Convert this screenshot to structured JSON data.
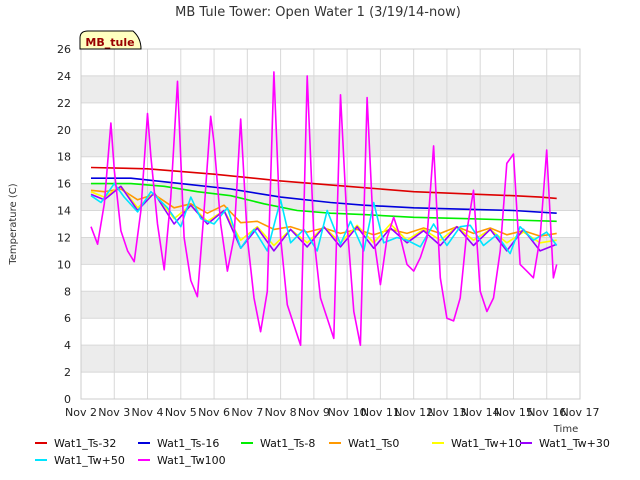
{
  "chart_data": {
    "type": "line",
    "title": "MB Tule Tower: Open Water 1 (3/19/14-now)",
    "ylabel": "Temperature (C)",
    "xlabel": "Time",
    "ylim": [
      0,
      26
    ],
    "yticks": [
      0,
      2,
      4,
      6,
      8,
      10,
      12,
      14,
      16,
      18,
      20,
      22,
      24,
      26
    ],
    "xlim": [
      0,
      15
    ],
    "xticks": [
      {
        "v": 0,
        "label": "Nov 2"
      },
      {
        "v": 1,
        "label": "Nov 3"
      },
      {
        "v": 2,
        "label": "Nov 4"
      },
      {
        "v": 3,
        "label": "Nov 5"
      },
      {
        "v": 4,
        "label": "Nov 6"
      },
      {
        "v": 5,
        "label": "Nov 7"
      },
      {
        "v": 6,
        "label": "Nov 8"
      },
      {
        "v": 7,
        "label": "Nov 9"
      },
      {
        "v": 8,
        "label": "Nov 10"
      },
      {
        "v": 9,
        "label": "Nov 11"
      },
      {
        "v": 10,
        "label": "Nov 12"
      },
      {
        "v": 11,
        "label": "Nov 13"
      },
      {
        "v": 12,
        "label": "Nov 14"
      },
      {
        "v": 13,
        "label": "Nov 15"
      },
      {
        "v": 14,
        "label": "Nov 16"
      },
      {
        "v": 15,
        "label": "Nov 17"
      }
    ],
    "site_label": "MB_tule",
    "series": [
      {
        "name": "Wat1_Ts-32",
        "color": "#dd0000",
        "x": [
          0.3,
          2,
          4,
          6,
          8,
          10,
          12,
          13,
          13.8,
          14.3
        ],
        "y": [
          17.2,
          17.1,
          16.7,
          16.2,
          15.8,
          15.4,
          15.2,
          15.1,
          15.0,
          14.9
        ]
      },
      {
        "name": "Wat1_Ts-16",
        "color": "#0000dd",
        "x": [
          0.3,
          1.5,
          3,
          4.5,
          6,
          7.5,
          8.5,
          10,
          11.5,
          13,
          14.3
        ],
        "y": [
          16.4,
          16.4,
          16.0,
          15.6,
          15.0,
          14.6,
          14.4,
          14.2,
          14.1,
          14.0,
          13.8
        ]
      },
      {
        "name": "Wat1_Ts-8",
        "color": "#00ee00",
        "x": [
          0.3,
          1.5,
          2.5,
          3.5,
          4.5,
          5.5,
          6.5,
          7.5,
          8.5,
          10,
          11.5,
          13,
          14.3
        ],
        "y": [
          16.0,
          16.0,
          15.8,
          15.4,
          15.1,
          14.5,
          14.0,
          13.8,
          13.7,
          13.5,
          13.4,
          13.3,
          13.2
        ]
      },
      {
        "name": "Wat1_Ts0",
        "color": "#ff9900",
        "x": [
          0.3,
          0.7,
          1.2,
          1.7,
          2.2,
          2.8,
          3.3,
          3.8,
          4.3,
          4.8,
          5.3,
          5.8,
          6.3,
          6.8,
          7.3,
          7.8,
          8.3,
          8.8,
          9.3,
          9.8,
          10.3,
          10.8,
          11.3,
          11.8,
          12.3,
          12.8,
          13.3,
          13.8,
          14.3
        ],
        "y": [
          15.5,
          15.4,
          15.6,
          14.8,
          15.2,
          14.2,
          14.5,
          13.8,
          14.4,
          13.1,
          13.2,
          12.6,
          12.8,
          12.4,
          12.7,
          12.3,
          12.6,
          12.2,
          12.6,
          12.3,
          12.7,
          12.3,
          12.8,
          12.3,
          12.7,
          12.2,
          12.5,
          12.1,
          12.3
        ]
      },
      {
        "name": "Wat1_Tw+10",
        "color": "#ffff00",
        "x": [
          0.3,
          0.7,
          1.2,
          1.7,
          2.2,
          2.8,
          3.3,
          3.8,
          4.3,
          4.8,
          5.3,
          5.8,
          6.3,
          6.8,
          7.3,
          7.8,
          8.3,
          8.8,
          9.3,
          9.8,
          10.3,
          10.8,
          11.3,
          11.8,
          12.3,
          12.8,
          13.3,
          13.8,
          14.3
        ],
        "y": [
          15.4,
          15.0,
          15.8,
          14.2,
          15.3,
          13.4,
          14.4,
          13.2,
          14.0,
          11.8,
          12.8,
          11.4,
          12.6,
          11.6,
          12.8,
          11.6,
          12.9,
          11.6,
          13.0,
          11.8,
          12.6,
          11.8,
          12.8,
          11.8,
          12.6,
          11.6,
          12.4,
          11.6,
          11.8
        ]
      },
      {
        "name": "Wat1_Tw+30",
        "color": "#9900ff",
        "x": [
          0.3,
          0.7,
          1.2,
          1.7,
          2.2,
          2.8,
          3.3,
          3.8,
          4.3,
          4.8,
          5.3,
          5.8,
          6.3,
          6.8,
          7.3,
          7.8,
          8.3,
          8.8,
          9.3,
          9.8,
          10.3,
          10.8,
          11.3,
          11.8,
          12.3,
          12.8,
          13.3,
          13.8,
          14.3
        ],
        "y": [
          15.2,
          14.8,
          15.8,
          14.0,
          15.3,
          13.0,
          14.4,
          13.0,
          14.0,
          11.2,
          12.7,
          11.0,
          12.6,
          11.3,
          12.8,
          11.3,
          12.8,
          11.2,
          12.7,
          11.6,
          12.5,
          11.4,
          12.8,
          11.4,
          12.6,
          11.0,
          12.6,
          11.0,
          11.5
        ]
      },
      {
        "name": "Wat1_Tw+50",
        "color": "#00e5ff",
        "x": [
          0.3,
          0.6,
          1.0,
          1.3,
          1.7,
          2.1,
          2.6,
          3.0,
          3.3,
          3.6,
          4.0,
          4.4,
          4.8,
          5.2,
          5.6,
          6.0,
          6.3,
          6.7,
          7.1,
          7.4,
          7.8,
          8.1,
          8.5,
          8.8,
          9.1,
          9.5,
          9.8,
          10.2,
          10.6,
          11.0,
          11.4,
          11.7,
          12.1,
          12.5,
          12.9,
          13.2,
          13.6,
          14.0,
          14.3
        ],
        "y": [
          15.1,
          14.6,
          16.0,
          15.0,
          13.9,
          15.4,
          14.2,
          12.8,
          15.0,
          13.4,
          13.0,
          14.2,
          11.2,
          12.6,
          11.0,
          14.8,
          11.6,
          12.6,
          11.0,
          14.0,
          11.5,
          13.2,
          11.0,
          14.6,
          11.6,
          12.0,
          11.8,
          11.3,
          13.0,
          11.4,
          12.8,
          12.9,
          11.4,
          12.2,
          10.8,
          12.8,
          11.8,
          12.4,
          11.4
        ]
      },
      {
        "name": "Wat1_Tw100",
        "color": "#ff00ff",
        "x": [
          0.3,
          0.5,
          0.7,
          0.9,
          1.0,
          1.2,
          1.4,
          1.6,
          1.8,
          2.0,
          2.1,
          2.3,
          2.5,
          2.7,
          2.9,
          3.1,
          3.3,
          3.5,
          3.7,
          3.9,
          4.0,
          4.2,
          4.4,
          4.6,
          4.8,
          5.0,
          5.2,
          5.4,
          5.6,
          5.8,
          6.0,
          6.2,
          6.4,
          6.6,
          6.8,
          7.0,
          7.2,
          7.4,
          7.6,
          7.8,
          8.0,
          8.2,
          8.4,
          8.6,
          8.8,
          9.0,
          9.2,
          9.4,
          9.6,
          9.8,
          10.0,
          10.2,
          10.4,
          10.6,
          10.8,
          11.0,
          11.2,
          11.4,
          11.6,
          11.8,
          12.0,
          12.2,
          12.4,
          12.6,
          12.8,
          13.0,
          13.2,
          13.4,
          13.6,
          13.8,
          14.0,
          14.2,
          14.3
        ],
        "y": [
          12.8,
          11.5,
          14.5,
          20.5,
          17.0,
          12.5,
          11.0,
          10.2,
          14.0,
          21.2,
          18.0,
          13.0,
          9.6,
          15.0,
          23.6,
          12.0,
          8.8,
          7.6,
          14.0,
          21.0,
          19.0,
          13.0,
          9.5,
          12.0,
          20.8,
          12.0,
          7.5,
          5.0,
          8.0,
          24.3,
          12.0,
          7.0,
          5.5,
          4.0,
          24.0,
          12.0,
          7.5,
          6.0,
          4.5,
          22.6,
          13.0,
          6.5,
          4.0,
          22.4,
          12.0,
          8.5,
          12.0,
          13.5,
          12.0,
          10.0,
          9.5,
          10.5,
          12.0,
          18.8,
          9.0,
          6.0,
          5.8,
          7.5,
          12.5,
          15.5,
          8.0,
          6.5,
          7.5,
          11.0,
          17.5,
          18.2,
          10.0,
          9.5,
          9.0,
          12.0,
          18.5,
          9.0,
          10.0
        ]
      }
    ]
  }
}
